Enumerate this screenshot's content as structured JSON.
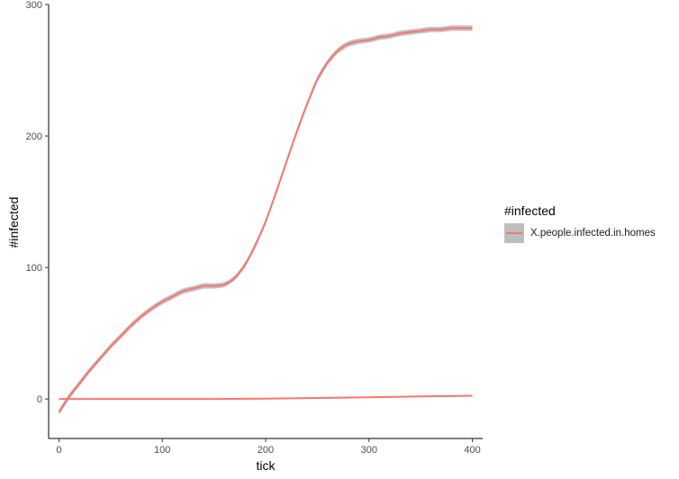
{
  "chart_data": {
    "type": "line",
    "title": "",
    "xlabel": "tick",
    "ylabel": "#infected",
    "xlim": [
      -10,
      410
    ],
    "ylim": [
      -30,
      300
    ],
    "xticks": [
      0,
      100,
      200,
      300,
      400
    ],
    "yticks": [
      0,
      100,
      200,
      300
    ],
    "grid": false,
    "legend": {
      "title": "#infected",
      "position": "right",
      "entries": [
        "X.people.infected.in.homes"
      ]
    },
    "series": [
      {
        "name": "X.people.infected.in.homes",
        "color": "#F8766D",
        "band_color": "#bdbdbd",
        "smooth": true,
        "x": [
          0,
          10,
          20,
          30,
          40,
          50,
          60,
          70,
          80,
          90,
          100,
          110,
          120,
          130,
          140,
          150,
          160,
          170,
          180,
          190,
          200,
          210,
          220,
          230,
          240,
          250,
          260,
          270,
          280,
          290,
          300,
          310,
          320,
          330,
          340,
          350,
          360,
          370,
          380,
          390,
          400
        ],
        "y": [
          -10,
          2,
          12,
          22,
          31,
          40,
          48,
          56,
          63,
          69,
          74,
          78,
          82,
          84,
          86,
          86,
          87,
          92,
          102,
          117,
          135,
          157,
          180,
          203,
          224,
          243,
          256,
          265,
          270,
          272,
          273,
          275,
          276,
          278,
          279,
          280,
          281,
          281,
          282,
          282,
          282
        ]
      },
      {
        "name": "",
        "color": "#F8766D",
        "smooth": false,
        "x": [
          0,
          50,
          100,
          150,
          200,
          250,
          300,
          350,
          400
        ],
        "y": [
          0,
          0,
          0,
          0,
          0.3,
          0.8,
          1.3,
          2,
          2.5
        ]
      }
    ]
  }
}
